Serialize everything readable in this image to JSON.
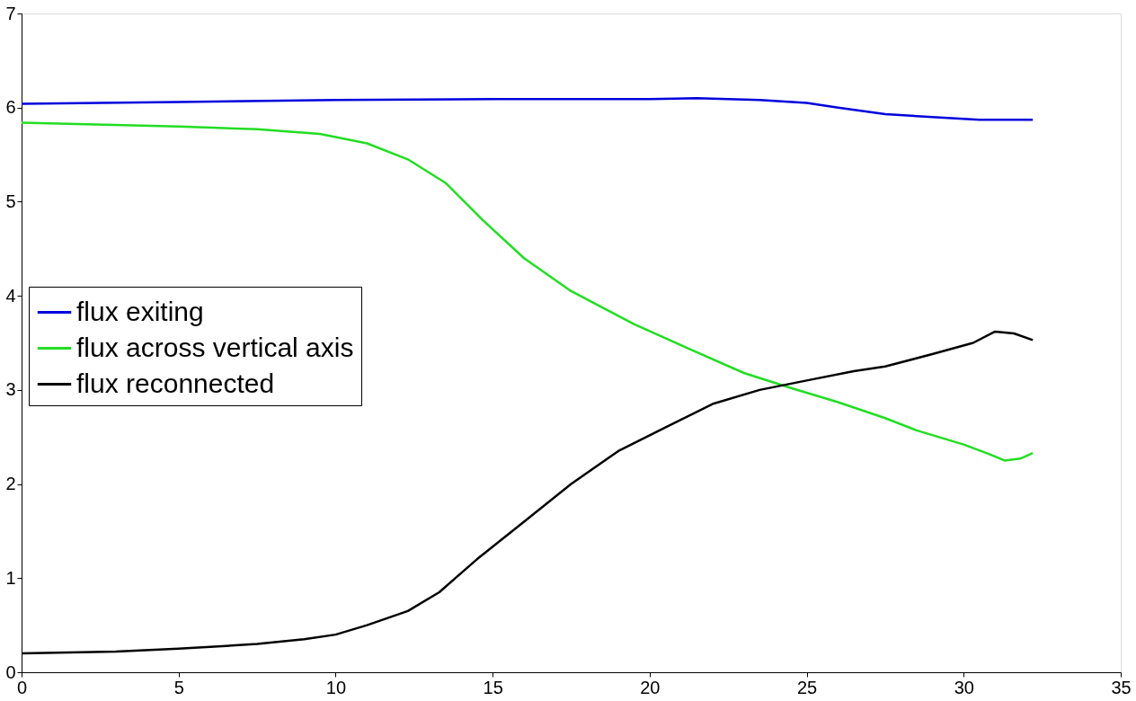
{
  "chart_data": {
    "type": "line",
    "xlim": [
      0,
      35
    ],
    "ylim": [
      0,
      7
    ],
    "xticks": [
      0,
      5,
      10,
      15,
      20,
      25,
      30,
      35
    ],
    "yticks": [
      0,
      1,
      2,
      3,
      4,
      5,
      6,
      7
    ],
    "grid": false,
    "legend": "left",
    "line_style": "solid",
    "marker": "none",
    "series": [
      {
        "name": "flux exiting",
        "color": "#0000dd",
        "x": [
          0,
          5,
          10,
          15,
          20,
          21.5,
          23.5,
          25,
          26,
          27.5,
          29,
          30.5,
          32.2
        ],
        "values": [
          6.04,
          6.06,
          6.08,
          6.09,
          6.09,
          6.1,
          6.08,
          6.05,
          6.0,
          5.93,
          5.9,
          5.87,
          5.87
        ]
      },
      {
        "name": "flux across vertical axis",
        "color": "#22dd22",
        "x": [
          0,
          5,
          7.5,
          9.5,
          11,
          12.3,
          13.5,
          14.7,
          16,
          17.5,
          19.5,
          21.5,
          23,
          24.5,
          26,
          27.5,
          28.5,
          30,
          30.8,
          31.3,
          31.8,
          32.2
        ],
        "values": [
          5.84,
          5.8,
          5.77,
          5.72,
          5.62,
          5.45,
          5.2,
          4.8,
          4.4,
          4.05,
          3.7,
          3.4,
          3.18,
          3.02,
          2.87,
          2.7,
          2.57,
          2.42,
          2.32,
          2.25,
          2.27,
          2.33
        ]
      },
      {
        "name": "flux reconnected",
        "color": "#000000",
        "x": [
          0,
          3,
          5,
          7.5,
          9,
          10,
          11,
          12.3,
          13.3,
          14.5,
          16,
          17.5,
          19,
          20.5,
          22,
          23.5,
          25,
          26.5,
          27.5,
          29,
          30.3,
          31,
          31.6,
          32.2
        ],
        "values": [
          0.2,
          0.22,
          0.25,
          0.3,
          0.35,
          0.4,
          0.5,
          0.65,
          0.85,
          1.2,
          1.6,
          2.0,
          2.35,
          2.6,
          2.85,
          3.0,
          3.1,
          3.2,
          3.25,
          3.38,
          3.5,
          3.62,
          3.6,
          3.53
        ]
      }
    ]
  }
}
